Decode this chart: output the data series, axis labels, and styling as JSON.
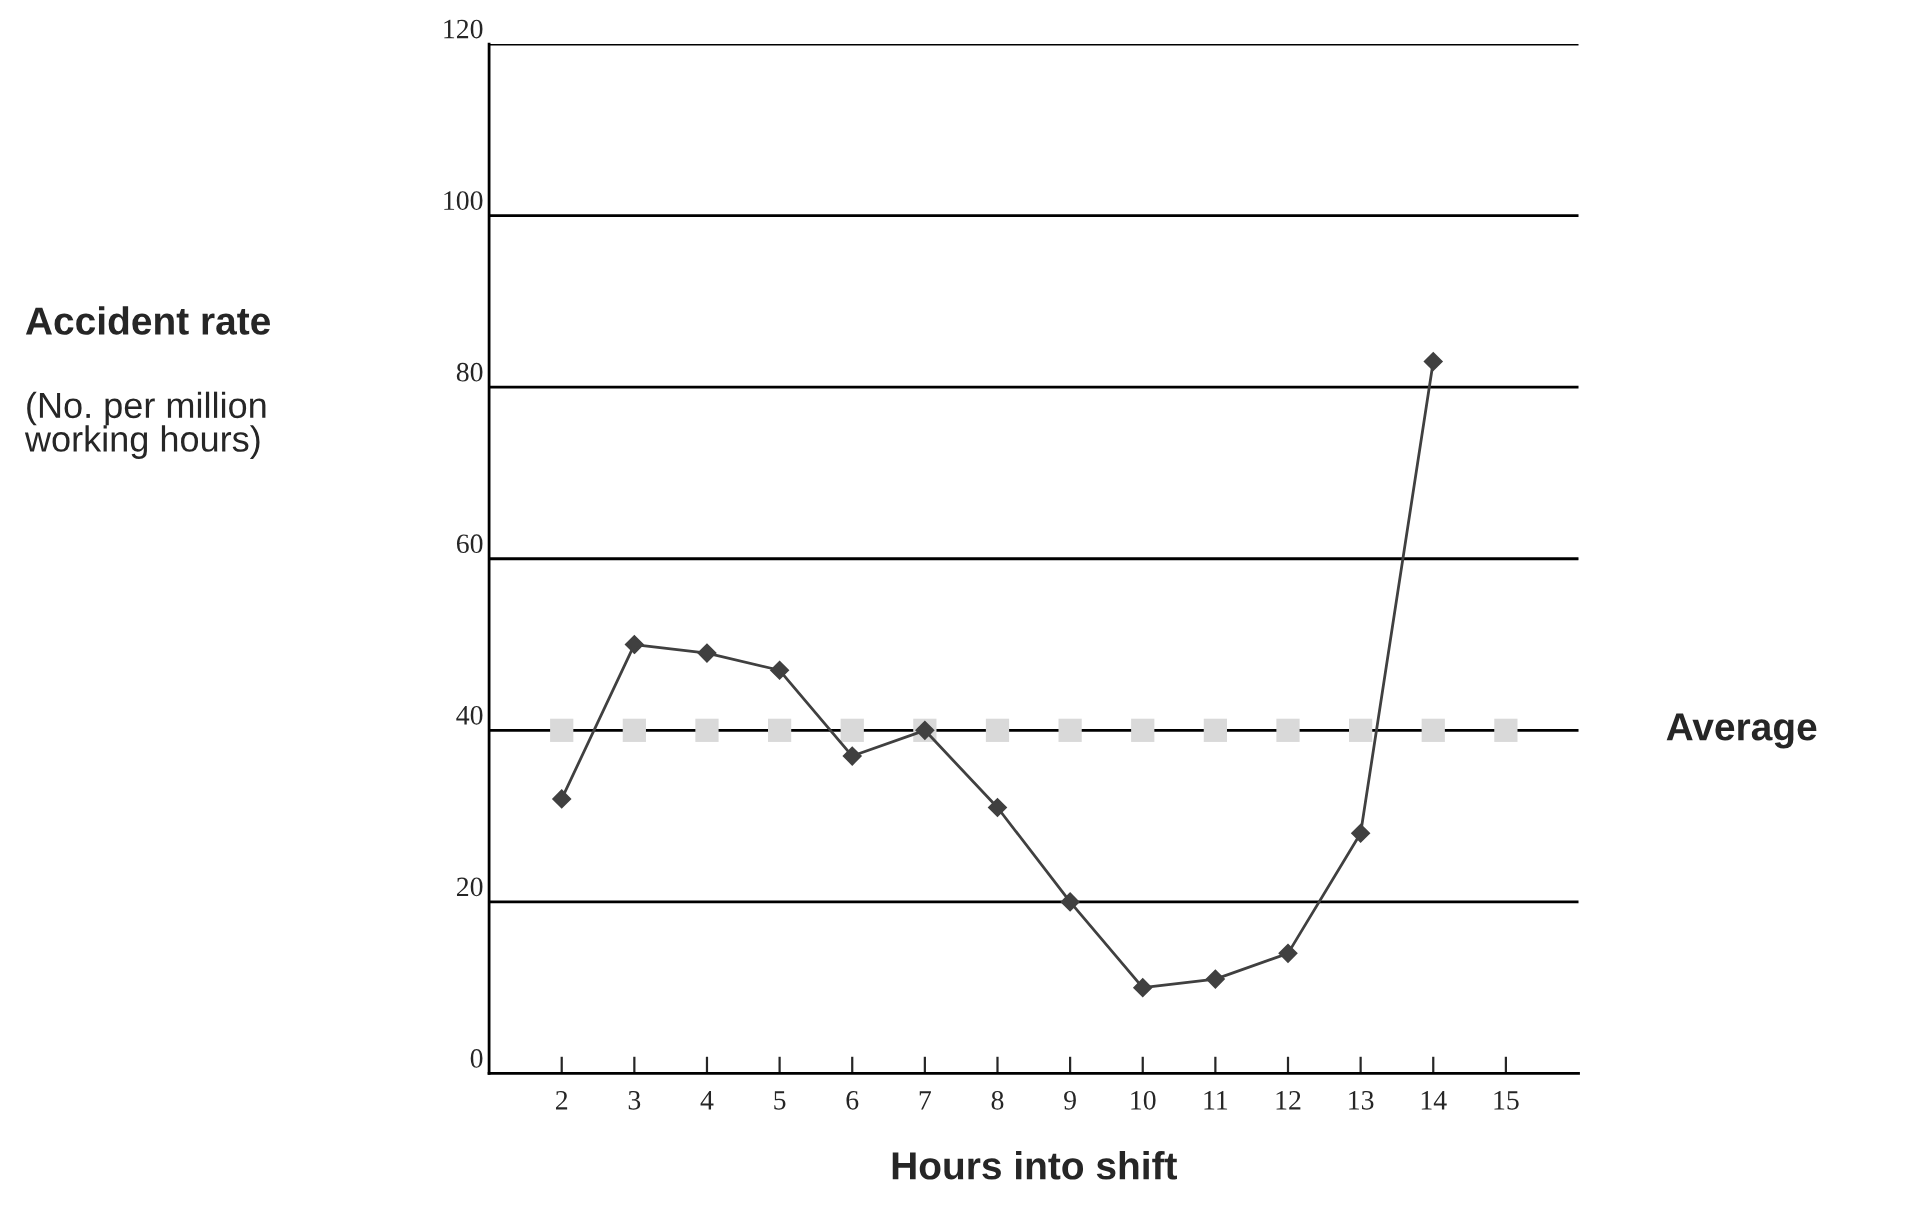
{
  "chart_data": {
    "type": "line",
    "xlabel": "Hours into shift",
    "ylabel": "Accident rate",
    "annotations": [
      "(No. per million\nworking hours)"
    ],
    "categories": [
      "2",
      "3",
      "4",
      "5",
      "6",
      "7",
      "8",
      "9",
      "10",
      "11",
      "12",
      "13",
      "14",
      "15"
    ],
    "series": [
      {
        "color": "#404040",
        "marker": "diamond",
        "values": [
          32,
          50,
          49,
          47,
          37,
          40,
          31,
          20,
          10,
          11,
          14,
          28,
          83,
          null
        ]
      },
      {
        "name": "Average",
        "type": "scatter",
        "marker": "square",
        "color": "#d9d9d9",
        "values": [
          40,
          40,
          40,
          40,
          40,
          40,
          40,
          40,
          40,
          40,
          40,
          40,
          40,
          40
        ]
      }
    ],
    "ylim": [
      0,
      120
    ],
    "yticks": [
      0,
      20,
      40,
      60,
      80,
      100,
      120
    ],
    "grid": "y",
    "legend": false
  }
}
